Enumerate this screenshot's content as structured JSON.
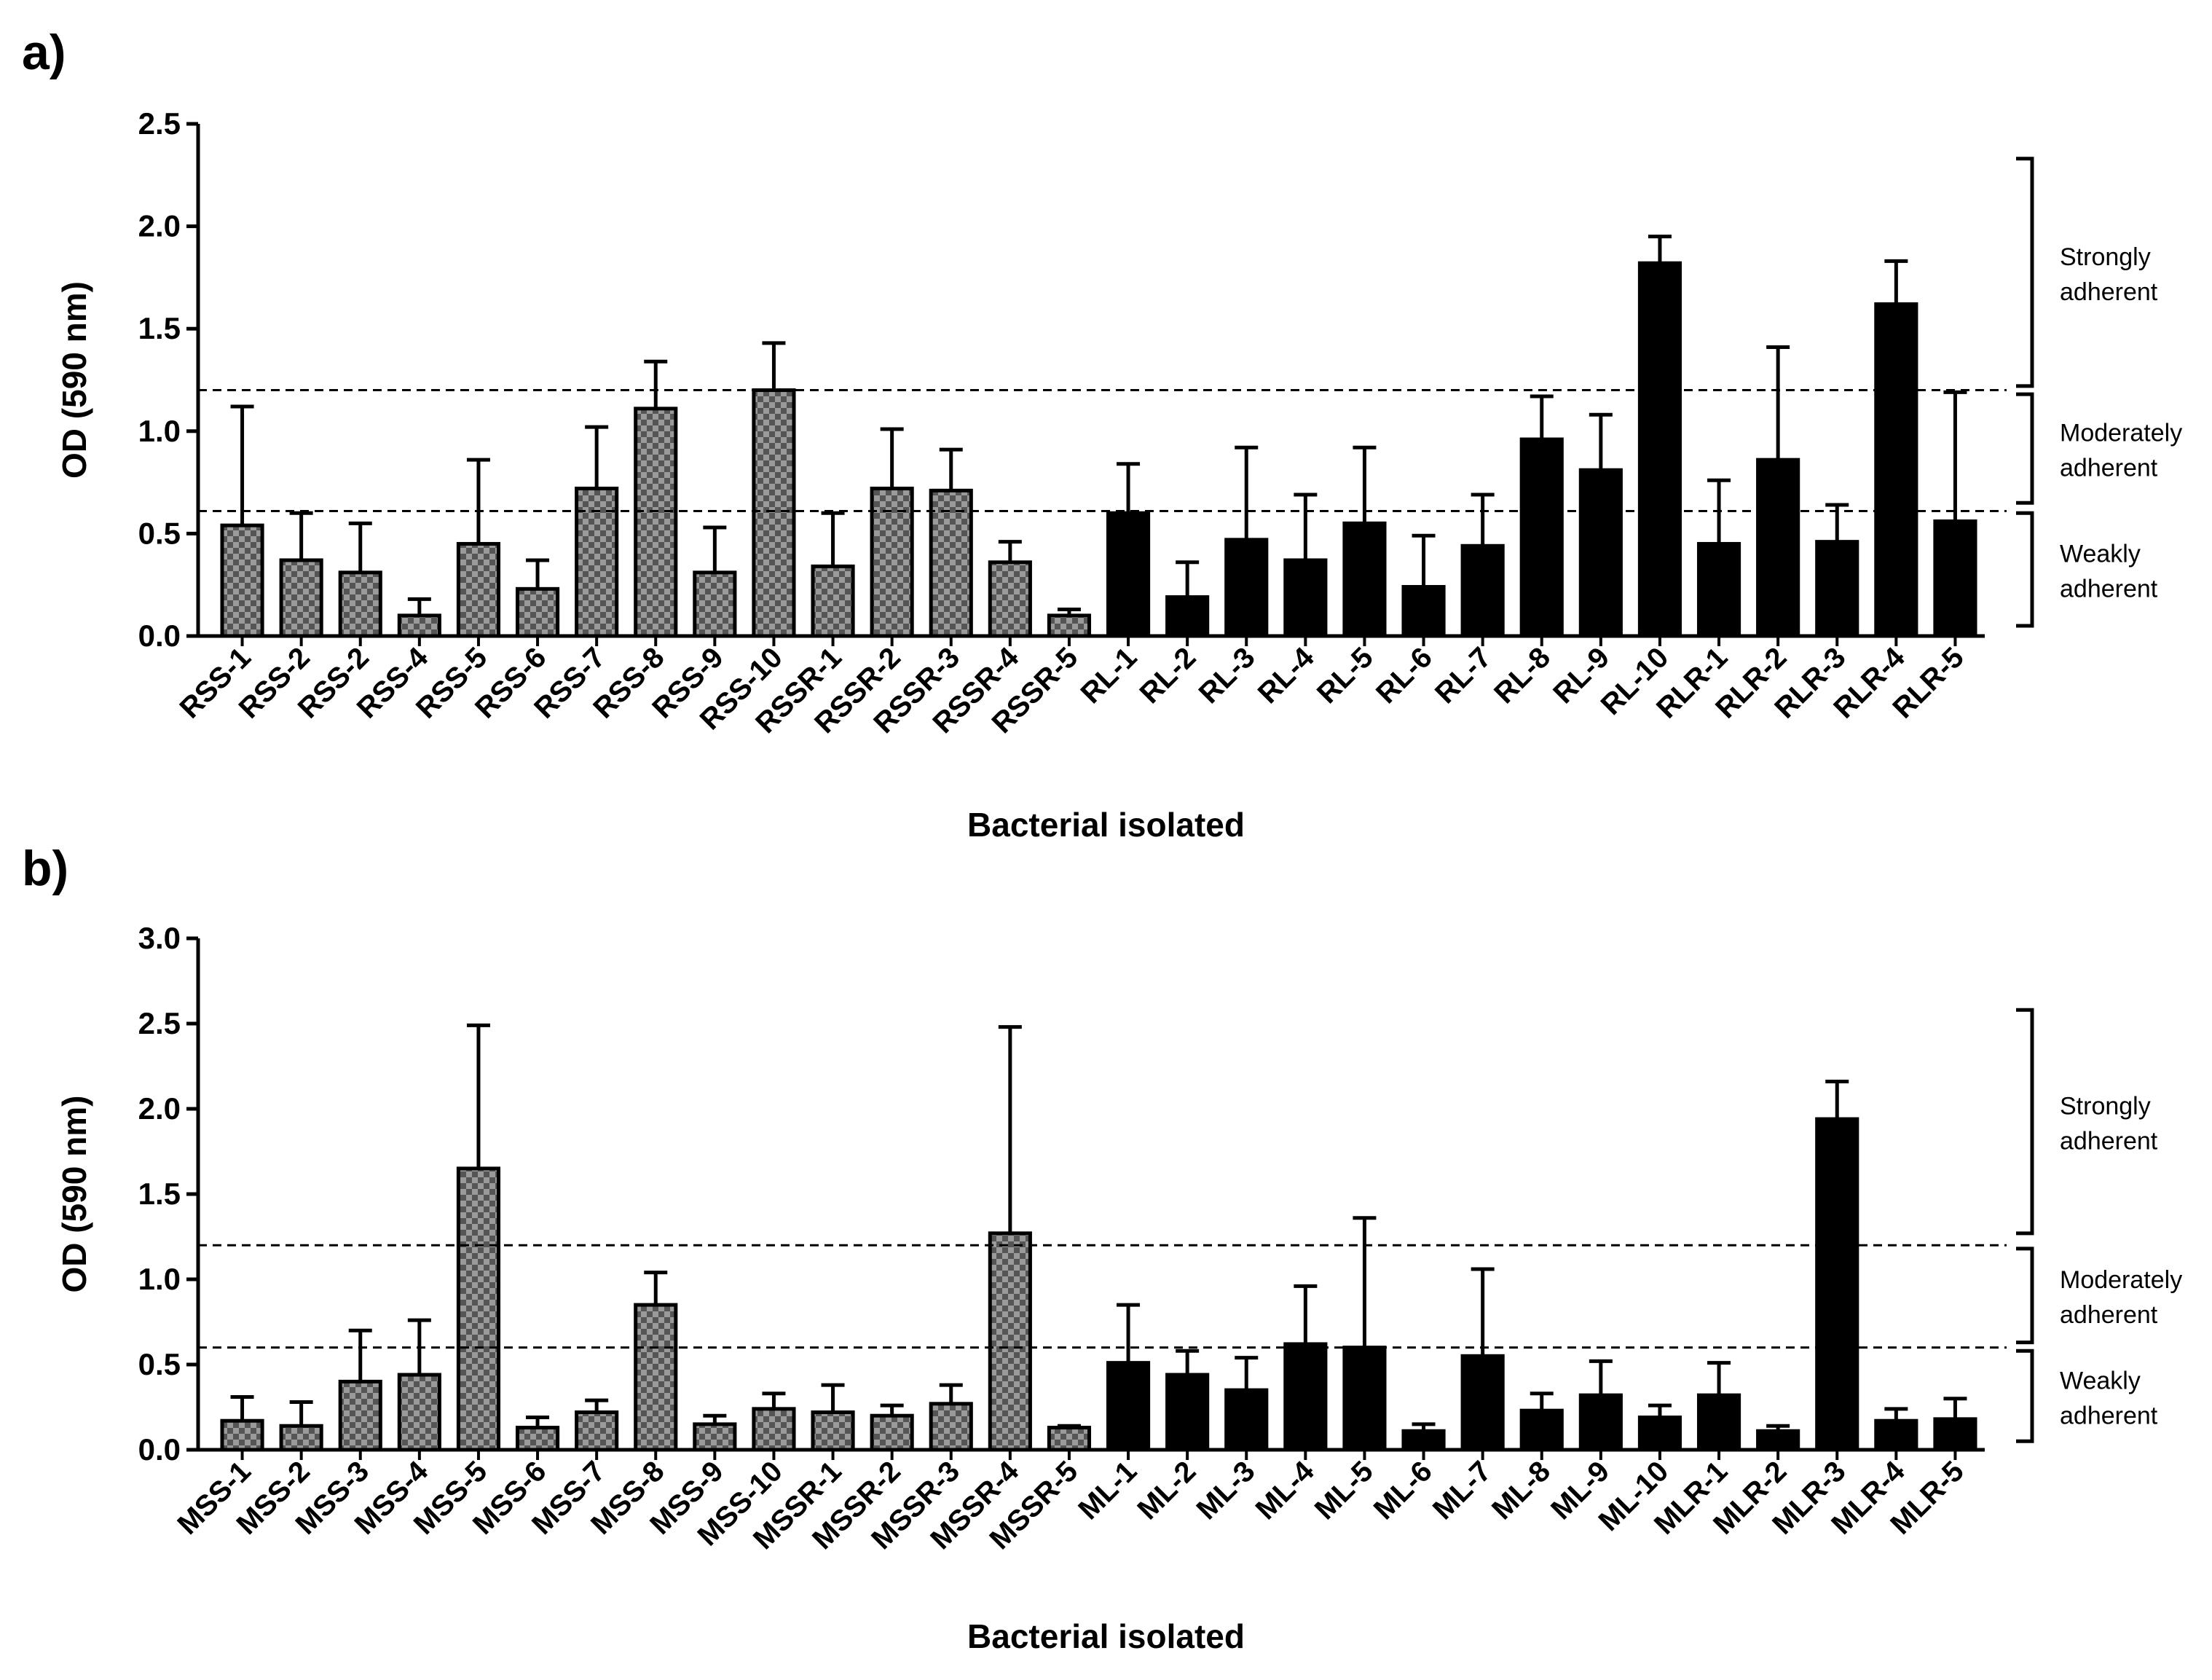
{
  "colors": {
    "bar_dark": "#000000",
    "check_light": "#9a9a9a",
    "check_dark": "#555555",
    "line": "#000000"
  },
  "chart_data": [
    {
      "type": "bar",
      "panel_label": "a)",
      "xlabel": "Bacterial isolated",
      "ylabel": "OD (590 nm)",
      "ylim": [
        0,
        2.5
      ],
      "yticks": [
        "0.0",
        "0.5",
        "1.0",
        "1.5",
        "2.0",
        "2.5"
      ],
      "categories": [
        "RSS-1",
        "RSS-2",
        "RSS-2",
        "RSS-4",
        "RSS-5",
        "RSS-6",
        "RSS-7",
        "RSS-8",
        "RSS-9",
        "RSS-10",
        "RSSR-1",
        "RSSR-2",
        "RSSR-3",
        "RSSR-4",
        "RSSR-5",
        "RL-1",
        "RL-2",
        "RL-3",
        "RL-4",
        "RL-5",
        "RL-6",
        "RL-7",
        "RL-8",
        "RL-9",
        "RL-10",
        "RLR-1",
        "RLR-2",
        "RLR-3",
        "RLR-4",
        "RLR-5"
      ],
      "values": [
        0.54,
        0.37,
        0.31,
        0.1,
        0.45,
        0.23,
        0.72,
        1.11,
        0.31,
        1.2,
        0.34,
        0.72,
        0.71,
        0.36,
        0.1,
        0.6,
        0.19,
        0.47,
        0.37,
        0.55,
        0.24,
        0.44,
        0.96,
        0.81,
        1.82,
        0.45,
        0.86,
        0.46,
        1.62,
        0.56
      ],
      "errors": [
        0.58,
        0.23,
        0.24,
        0.08,
        0.41,
        0.14,
        0.3,
        0.23,
        0.22,
        0.23,
        0.26,
        0.29,
        0.2,
        0.1,
        0.03,
        0.24,
        0.17,
        0.45,
        0.32,
        0.37,
        0.25,
        0.25,
        0.21,
        0.27,
        0.13,
        0.31,
        0.55,
        0.18,
        0.21,
        0.63
      ],
      "checkered_count": 15,
      "thresholds": [
        0.61,
        1.2
      ],
      "zones": [
        {
          "line1": "Strongly",
          "line2": "adherent",
          "from": 1.22,
          "to": 2.33
        },
        {
          "line1": "Moderately",
          "line2": "adherent",
          "from": 0.65,
          "to": 1.18
        },
        {
          "line1": "Weakly",
          "line2": "adherent",
          "from": 0.05,
          "to": 0.6
        }
      ]
    },
    {
      "type": "bar",
      "panel_label": "b)",
      "xlabel": "Bacterial isolated",
      "ylabel": "OD (590 nm)",
      "ylim": [
        0,
        3.0
      ],
      "yticks": [
        "0.0",
        "0.5",
        "1.0",
        "1.5",
        "2.0",
        "2.5",
        "3.0"
      ],
      "categories": [
        "MSS-1",
        "MSS-2",
        "MSS-3",
        "MSS-4",
        "MSS-5",
        "MSS-6",
        "MSS-7",
        "MSS-8",
        "MSS-9",
        "MSS-10",
        "MSSR-1",
        "MSSR-2",
        "MSSR-3",
        "MSSR-4",
        "MSSR-5",
        "ML-1",
        "ML-2",
        "ML-3",
        "ML-4",
        "ML-5",
        "ML-6",
        "ML-7",
        "ML-8",
        "ML-9",
        "ML-10",
        "MLR-1",
        "MLR-2",
        "MLR-3",
        "MLR-4",
        "MLR-5"
      ],
      "values": [
        0.17,
        0.14,
        0.4,
        0.44,
        1.65,
        0.13,
        0.22,
        0.85,
        0.15,
        0.24,
        0.22,
        0.2,
        0.27,
        1.27,
        0.13,
        0.51,
        0.44,
        0.35,
        0.62,
        0.6,
        0.11,
        0.55,
        0.23,
        0.32,
        0.19,
        0.32,
        0.11,
        1.94,
        0.17,
        0.18
      ],
      "errors": [
        0.14,
        0.14,
        0.3,
        0.32,
        0.84,
        0.06,
        0.07,
        0.19,
        0.05,
        0.09,
        0.16,
        0.06,
        0.11,
        1.21,
        0.01,
        0.34,
        0.14,
        0.19,
        0.34,
        0.76,
        0.04,
        0.51,
        0.1,
        0.2,
        0.07,
        0.19,
        0.03,
        0.22,
        0.07,
        0.12
      ],
      "checkered_count": 15,
      "thresholds": [
        0.6,
        1.2
      ],
      "zones": [
        {
          "line1": "Strongly",
          "line2": "adherent",
          "from": 1.27,
          "to": 2.58
        },
        {
          "line1": "Moderately",
          "line2": "adherent",
          "from": 0.63,
          "to": 1.18
        },
        {
          "line1": "Weakly",
          "line2": "adherent",
          "from": 0.05,
          "to": 0.58
        }
      ]
    }
  ]
}
